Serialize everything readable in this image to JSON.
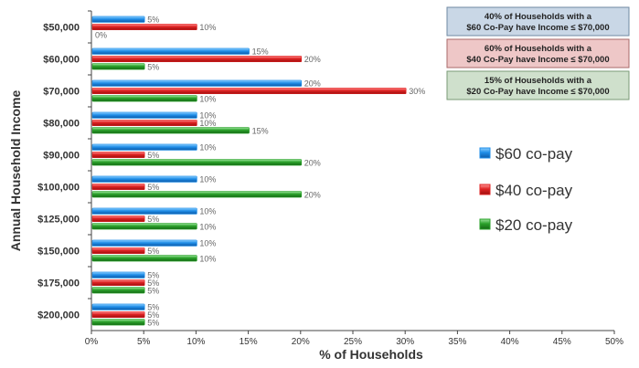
{
  "chart_data": {
    "type": "bar",
    "orientation": "horizontal",
    "title": "",
    "xlabel": "% of Households",
    "ylabel": "Annual Household Income",
    "xlim": [
      0,
      50
    ],
    "x_ticks": [
      "0%",
      "5%",
      "10%",
      "15%",
      "20%",
      "25%",
      "30%",
      "35%",
      "40%",
      "45%",
      "50%"
    ],
    "grid": false,
    "legend_position": "right",
    "categories": [
      "$50,000",
      "$60,000",
      "$70,000",
      "$80,000",
      "$90,000",
      "$100,000",
      "$125,000",
      "$150,000",
      "$175,000",
      "$200,000"
    ],
    "series": [
      {
        "name": "$60 co-pay",
        "color": "#1f8ee8",
        "values": [
          5,
          15,
          20,
          10,
          10,
          10,
          10,
          10,
          5,
          5
        ]
      },
      {
        "name": "$40 co-pay",
        "color": "#e02424",
        "values": [
          10,
          20,
          30,
          10,
          5,
          5,
          5,
          5,
          5,
          5
        ]
      },
      {
        "name": "$20 co-pay",
        "color": "#2aa12a",
        "values": [
          0,
          5,
          10,
          15,
          20,
          20,
          10,
          10,
          5,
          5
        ]
      }
    ],
    "annotations": [
      {
        "line1": "40% of Households with a",
        "line2": "$60 Co-Pay have Income ≤ $70,000",
        "fill": "#c9d7e6",
        "border": "#6f8aa3"
      },
      {
        "line1": "60% of Households with a",
        "line2": "$40 Co-Pay have Income ≤ $70,000",
        "fill": "#eec7c7",
        "border": "#a86a6a"
      },
      {
        "line1": "15% of Households with a",
        "line2": "$20 Co-Pay have Income ≤ $70,000",
        "fill": "#cfe0cc",
        "border": "#7a9a76"
      }
    ]
  }
}
